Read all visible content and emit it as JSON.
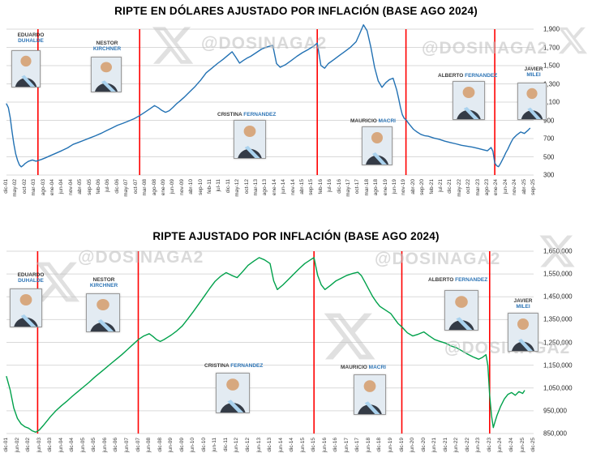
{
  "watermark": {
    "handle": "@DOSINAGA2",
    "color": "#c3c3c3"
  },
  "presidents": [
    {
      "first": "EDUARDO",
      "last": "DUHALDE"
    },
    {
      "first": "NESTOR",
      "last": "KIRCHNER"
    },
    {
      "first": "CRISTINA",
      "last": "FERNANDEZ"
    },
    {
      "first": "MAURICIO",
      "last": "MACRI"
    },
    {
      "first": "ALBERTO",
      "last": "FERNANDEZ"
    },
    {
      "first": "JAVIER",
      "last": "MILEI"
    }
  ],
  "chart_data": [
    {
      "type": "line",
      "title": "RIPTE EN DÓLARES AJUSTADO POR INFLACIÓN (BASE AGO 2024)",
      "series_name": "RIPTE en dólares ajustado por inflación (base ago 2024)",
      "line_color": "#2271B3",
      "grid": true,
      "legend": false,
      "y_axis_side": "right",
      "ylim": [
        300,
        1900
      ],
      "ytick_step": 200,
      "ytick_labels": [
        "1,900",
        "1,700",
        "1,500",
        "1,300",
        "1,100",
        "900",
        "700",
        "500",
        "300"
      ],
      "x_start": "dic-01",
      "x_end": "sep-25",
      "x_months_total": 286,
      "xtick_step_months": 5,
      "xtick_labels": [
        "dic-01",
        "may-02",
        "oct-02",
        "mar-03",
        "ago-03",
        "ene-04",
        "jun-04",
        "nov-04",
        "abr-05",
        "sep-05",
        "feb-06",
        "jul-06",
        "dic-06",
        "may-07",
        "oct-07",
        "mar-08",
        "ago-08",
        "ene-09",
        "jun-09",
        "nov-09",
        "abr-10",
        "sep-10",
        "feb-11",
        "jul-11",
        "dic-11",
        "may-12",
        "oct-12",
        "mar-13",
        "ago-13",
        "ene-14",
        "jun-14",
        "nov-14",
        "abr-15",
        "sep-15",
        "feb-16",
        "jul-16",
        "dic-16",
        "may-17",
        "oct-17",
        "mar-18",
        "ago-18",
        "ene-19",
        "jun-19",
        "nov-19",
        "abr-20",
        "sep-20",
        "feb-21",
        "jul-21",
        "dic-21",
        "may-22",
        "oct-22",
        "mar-23",
        "ago-23",
        "ene-24",
        "jun-24",
        "nov-24",
        "abr-25",
        "sep-25"
      ],
      "transition_lines_months": [
        17,
        72,
        168,
        216,
        264
      ],
      "transition_line_color": "#FF0000",
      "points_month_value": [
        [
          0,
          1080
        ],
        [
          1,
          1040
        ],
        [
          2,
          930
        ],
        [
          3,
          780
        ],
        [
          4,
          640
        ],
        [
          5,
          530
        ],
        [
          6,
          460
        ],
        [
          7,
          410
        ],
        [
          8,
          390
        ],
        [
          9,
          405
        ],
        [
          10,
          425
        ],
        [
          11,
          440
        ],
        [
          12,
          452
        ],
        [
          14,
          465
        ],
        [
          16,
          452
        ],
        [
          17,
          458
        ],
        [
          19,
          472
        ],
        [
          21,
          488
        ],
        [
          24,
          515
        ],
        [
          27,
          542
        ],
        [
          30,
          568
        ],
        [
          33,
          598
        ],
        [
          36,
          636
        ],
        [
          39,
          658
        ],
        [
          42,
          682
        ],
        [
          45,
          706
        ],
        [
          48,
          730
        ],
        [
          51,
          756
        ],
        [
          54,
          786
        ],
        [
          57,
          816
        ],
        [
          60,
          846
        ],
        [
          63,
          868
        ],
        [
          66,
          892
        ],
        [
          69,
          918
        ],
        [
          72,
          952
        ],
        [
          75,
          992
        ],
        [
          78,
          1032
        ],
        [
          80,
          1062
        ],
        [
          82,
          1040
        ],
        [
          84,
          1008
        ],
        [
          86,
          988
        ],
        [
          88,
          1006
        ],
        [
          90,
          1042
        ],
        [
          92,
          1082
        ],
        [
          94,
          1116
        ],
        [
          96,
          1152
        ],
        [
          99,
          1212
        ],
        [
          102,
          1272
        ],
        [
          105,
          1342
        ],
        [
          108,
          1422
        ],
        [
          111,
          1472
        ],
        [
          114,
          1522
        ],
        [
          117,
          1568
        ],
        [
          120,
          1618
        ],
        [
          122,
          1652
        ],
        [
          124,
          1592
        ],
        [
          126,
          1528
        ],
        [
          128,
          1556
        ],
        [
          130,
          1582
        ],
        [
          132,
          1602
        ],
        [
          135,
          1642
        ],
        [
          138,
          1682
        ],
        [
          141,
          1706
        ],
        [
          144,
          1722
        ],
        [
          146,
          1522
        ],
        [
          148,
          1482
        ],
        [
          151,
          1512
        ],
        [
          154,
          1556
        ],
        [
          157,
          1602
        ],
        [
          160,
          1642
        ],
        [
          163,
          1676
        ],
        [
          166,
          1712
        ],
        [
          168,
          1748
        ],
        [
          170,
          1502
        ],
        [
          172,
          1472
        ],
        [
          174,
          1522
        ],
        [
          177,
          1566
        ],
        [
          180,
          1612
        ],
        [
          183,
          1656
        ],
        [
          186,
          1702
        ],
        [
          189,
          1762
        ],
        [
          191,
          1852
        ],
        [
          193,
          1948
        ],
        [
          195,
          1882
        ],
        [
          197,
          1702
        ],
        [
          199,
          1482
        ],
        [
          201,
          1332
        ],
        [
          203,
          1262
        ],
        [
          205,
          1312
        ],
        [
          207,
          1346
        ],
        [
          209,
          1362
        ],
        [
          211,
          1232
        ],
        [
          212,
          1142
        ],
        [
          213,
          1042
        ],
        [
          214,
          962
        ],
        [
          215,
          922
        ],
        [
          216,
          906
        ],
        [
          218,
          852
        ],
        [
          220,
          802
        ],
        [
          222,
          772
        ],
        [
          224,
          746
        ],
        [
          226,
          732
        ],
        [
          228,
          726
        ],
        [
          231,
          706
        ],
        [
          234,
          692
        ],
        [
          237,
          672
        ],
        [
          240,
          656
        ],
        [
          243,
          642
        ],
        [
          246,
          626
        ],
        [
          249,
          616
        ],
        [
          252,
          606
        ],
        [
          255,
          592
        ],
        [
          258,
          576
        ],
        [
          260,
          566
        ],
        [
          262,
          602
        ],
        [
          263,
          562
        ],
        [
          264,
          432
        ],
        [
          265,
          402
        ],
        [
          266,
          392
        ],
        [
          267,
          422
        ],
        [
          268,
          462
        ],
        [
          269,
          502
        ],
        [
          270,
          546
        ],
        [
          271,
          582
        ],
        [
          272,
          626
        ],
        [
          273,
          666
        ],
        [
          274,
          702
        ],
        [
          276,
          742
        ],
        [
          278,
          772
        ],
        [
          280,
          756
        ],
        [
          282,
          792
        ],
        [
          283,
          812
        ]
      ]
    },
    {
      "type": "line",
      "title": "RIPTE AJUSTADO POR INFLACIÓN (BASE AGO 2024)",
      "series_name": "RIPTE ajustado por inflación (base ago 2024)",
      "line_color": "#00A14B",
      "grid": true,
      "legend": false,
      "y_axis_side": "right",
      "ylim": [
        850000,
        1650000
      ],
      "ytick_step": 100000,
      "ytick_labels": [
        "1,650,000",
        "1,550,000",
        "1,450,000",
        "1,350,000",
        "1,250,000",
        "1,150,000",
        "1,050,000",
        "950,000",
        "850,000"
      ],
      "x_start": "dic-01",
      "x_end": "dic-25",
      "x_months_total": 289,
      "xtick_step_months": 6,
      "xtick_labels": [
        "dic-01",
        "jun-02",
        "dic-02",
        "jun-03",
        "dic-03",
        "jun-04",
        "dic-04",
        "jun-05",
        "dic-05",
        "jun-06",
        "dic-06",
        "jun-07",
        "dic-07",
        "jun-08",
        "dic-08",
        "jun-09",
        "dic-09",
        "jun-10",
        "dic-10",
        "jun-11",
        "dic-11",
        "jun-12",
        "dic-12",
        "jun-13",
        "dic-13",
        "jun-14",
        "dic-14",
        "jun-15",
        "dic-15",
        "jun-16",
        "dic-16",
        "jun-17",
        "dic-17",
        "jun-18",
        "dic-18",
        "jun-19",
        "dic-19",
        "jun-20",
        "dic-20",
        "jun-21",
        "dic-21",
        "jun-22",
        "dic-22",
        "jun-23",
        "dic-23",
        "jun-24",
        "dic-24",
        "jun-25",
        "dic-25"
      ],
      "transition_lines_months": [
        17,
        72,
        168,
        216,
        264
      ],
      "transition_line_color": "#FF0000",
      "points_month_value": [
        [
          0,
          1100000
        ],
        [
          2,
          1042000
        ],
        [
          4,
          962000
        ],
        [
          6,
          916000
        ],
        [
          8,
          892000
        ],
        [
          10,
          880000
        ],
        [
          12,
          874000
        ],
        [
          14,
          862000
        ],
        [
          16,
          856000
        ],
        [
          18,
          866000
        ],
        [
          20,
          884000
        ],
        [
          22,
          904000
        ],
        [
          24,
          924000
        ],
        [
          27,
          950000
        ],
        [
          30,
          972000
        ],
        [
          33,
          992000
        ],
        [
          36,
          1014000
        ],
        [
          39,
          1034000
        ],
        [
          42,
          1054000
        ],
        [
          45,
          1074000
        ],
        [
          48,
          1096000
        ],
        [
          51,
          1116000
        ],
        [
          54,
          1136000
        ],
        [
          57,
          1156000
        ],
        [
          60,
          1176000
        ],
        [
          63,
          1196000
        ],
        [
          66,
          1218000
        ],
        [
          69,
          1240000
        ],
        [
          72,
          1262000
        ],
        [
          75,
          1278000
        ],
        [
          78,
          1288000
        ],
        [
          80,
          1276000
        ],
        [
          82,
          1262000
        ],
        [
          84,
          1254000
        ],
        [
          86,
          1262000
        ],
        [
          88,
          1272000
        ],
        [
          90,
          1282000
        ],
        [
          93,
          1300000
        ],
        [
          96,
          1322000
        ],
        [
          99,
          1352000
        ],
        [
          102,
          1384000
        ],
        [
          105,
          1418000
        ],
        [
          108,
          1452000
        ],
        [
          111,
          1486000
        ],
        [
          114,
          1518000
        ],
        [
          117,
          1540000
        ],
        [
          120,
          1556000
        ],
        [
          123,
          1544000
        ],
        [
          126,
          1534000
        ],
        [
          129,
          1560000
        ],
        [
          132,
          1588000
        ],
        [
          135,
          1606000
        ],
        [
          138,
          1622000
        ],
        [
          141,
          1612000
        ],
        [
          144,
          1596000
        ],
        [
          146,
          1520000
        ],
        [
          148,
          1482000
        ],
        [
          151,
          1502000
        ],
        [
          154,
          1526000
        ],
        [
          157,
          1550000
        ],
        [
          160,
          1574000
        ],
        [
          163,
          1596000
        ],
        [
          166,
          1612000
        ],
        [
          168,
          1622000
        ],
        [
          170,
          1544000
        ],
        [
          172,
          1502000
        ],
        [
          174,
          1482000
        ],
        [
          177,
          1500000
        ],
        [
          180,
          1520000
        ],
        [
          183,
          1532000
        ],
        [
          186,
          1544000
        ],
        [
          189,
          1552000
        ],
        [
          192,
          1558000
        ],
        [
          194,
          1542000
        ],
        [
          196,
          1512000
        ],
        [
          198,
          1482000
        ],
        [
          200,
          1452000
        ],
        [
          202,
          1428000
        ],
        [
          204,
          1408000
        ],
        [
          207,
          1392000
        ],
        [
          210,
          1376000
        ],
        [
          212,
          1354000
        ],
        [
          214,
          1332000
        ],
        [
          216,
          1318000
        ],
        [
          219,
          1292000
        ],
        [
          222,
          1278000
        ],
        [
          225,
          1286000
        ],
        [
          228,
          1296000
        ],
        [
          231,
          1278000
        ],
        [
          234,
          1262000
        ],
        [
          237,
          1254000
        ],
        [
          240,
          1246000
        ],
        [
          243,
          1234000
        ],
        [
          246,
          1226000
        ],
        [
          249,
          1212000
        ],
        [
          252,
          1198000
        ],
        [
          255,
          1186000
        ],
        [
          258,
          1176000
        ],
        [
          260,
          1184000
        ],
        [
          262,
          1196000
        ],
        [
          263,
          1148000
        ],
        [
          264,
          1018000
        ],
        [
          265,
          928000
        ],
        [
          266,
          876000
        ],
        [
          267,
          904000
        ],
        [
          268,
          930000
        ],
        [
          270,
          970000
        ],
        [
          272,
          1002000
        ],
        [
          274,
          1022000
        ],
        [
          276,
          1030000
        ],
        [
          278,
          1018000
        ],
        [
          280,
          1034000
        ],
        [
          282,
          1026000
        ],
        [
          283,
          1038000
        ]
      ]
    }
  ]
}
